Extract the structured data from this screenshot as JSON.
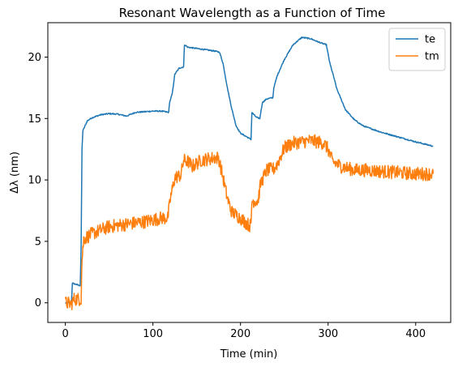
{
  "chart_data": {
    "type": "line",
    "title": "Resonant Wavelength as a Function of Time",
    "xlabel": "Time (min)",
    "ylabel": "Δλ (nm)",
    "xlim": [
      -20,
      440
    ],
    "ylim": [
      -1.6,
      22.8
    ],
    "xticks": [
      0,
      100,
      200,
      300,
      400
    ],
    "yticks": [
      0,
      5,
      10,
      15,
      20
    ],
    "grid": false,
    "legend_position": "top-right",
    "series": [
      {
        "name": "te",
        "color": "#1f77b4",
        "noise": 0.05,
        "points": [
          [
            0,
            0.0
          ],
          [
            7,
            0.0
          ],
          [
            8,
            1.6
          ],
          [
            12,
            1.5
          ],
          [
            17,
            1.4
          ],
          [
            18,
            4.5
          ],
          [
            19,
            12.5
          ],
          [
            20,
            14.0
          ],
          [
            25,
            14.8
          ],
          [
            30,
            15.05
          ],
          [
            40,
            15.3
          ],
          [
            50,
            15.4
          ],
          [
            60,
            15.35
          ],
          [
            70,
            15.2
          ],
          [
            80,
            15.5
          ],
          [
            90,
            15.55
          ],
          [
            100,
            15.6
          ],
          [
            110,
            15.6
          ],
          [
            118,
            15.5
          ],
          [
            119,
            16.3
          ],
          [
            122,
            17.0
          ],
          [
            125,
            18.6
          ],
          [
            130,
            19.1
          ],
          [
            135,
            19.2
          ],
          [
            136,
            21.0
          ],
          [
            140,
            20.8
          ],
          [
            150,
            20.7
          ],
          [
            160,
            20.6
          ],
          [
            170,
            20.5
          ],
          [
            176,
            20.4
          ],
          [
            180,
            19.5
          ],
          [
            185,
            17.5
          ],
          [
            190,
            15.8
          ],
          [
            195,
            14.4
          ],
          [
            200,
            13.8
          ],
          [
            205,
            13.6
          ],
          [
            212,
            13.3
          ],
          [
            213,
            15.5
          ],
          [
            218,
            15.1
          ],
          [
            222,
            15.0
          ],
          [
            225,
            16.3
          ],
          [
            230,
            16.6
          ],
          [
            237,
            16.7
          ],
          [
            238,
            17.5
          ],
          [
            242,
            18.5
          ],
          [
            250,
            19.8
          ],
          [
            260,
            21.0
          ],
          [
            270,
            21.6
          ],
          [
            280,
            21.5
          ],
          [
            290,
            21.2
          ],
          [
            298,
            21.0
          ],
          [
            302,
            19.5
          ],
          [
            306,
            18.5
          ],
          [
            310,
            17.4
          ],
          [
            320,
            15.7
          ],
          [
            330,
            14.9
          ],
          [
            340,
            14.4
          ],
          [
            360,
            13.9
          ],
          [
            380,
            13.5
          ],
          [
            400,
            13.1
          ],
          [
            420,
            12.75
          ]
        ]
      },
      {
        "name": "tm",
        "color": "#ff7f0e",
        "noise": 0.55,
        "points": [
          [
            0,
            0.0
          ],
          [
            7,
            -0.1
          ],
          [
            10,
            0.3
          ],
          [
            18,
            0.3
          ],
          [
            19,
            3.5
          ],
          [
            21,
            5.2
          ],
          [
            30,
            5.6
          ],
          [
            50,
            6.2
          ],
          [
            70,
            6.4
          ],
          [
            90,
            6.6
          ],
          [
            110,
            6.9
          ],
          [
            117,
            6.9
          ],
          [
            120,
            8.5
          ],
          [
            125,
            10.2
          ],
          [
            132,
            10.4
          ],
          [
            135,
            11.6
          ],
          [
            140,
            11.5
          ],
          [
            145,
            11.1
          ],
          [
            155,
            11.6
          ],
          [
            170,
            11.8
          ],
          [
            175,
            11.8
          ],
          [
            180,
            10.2
          ],
          [
            185,
            8.5
          ],
          [
            190,
            7.4
          ],
          [
            200,
            6.9
          ],
          [
            210,
            6.3
          ],
          [
            212,
            6.3
          ],
          [
            213,
            8.3
          ],
          [
            220,
            8.3
          ],
          [
            223,
            9.7
          ],
          [
            230,
            10.8
          ],
          [
            238,
            10.9
          ],
          [
            242,
            11.3
          ],
          [
            250,
            12.6
          ],
          [
            260,
            13.0
          ],
          [
            270,
            13.1
          ],
          [
            280,
            13.2
          ],
          [
            295,
            13.0
          ],
          [
            300,
            12.5
          ],
          [
            305,
            11.5
          ],
          [
            315,
            11.1
          ],
          [
            330,
            10.8
          ],
          [
            345,
            10.8
          ],
          [
            360,
            10.7
          ],
          [
            380,
            10.6
          ],
          [
            400,
            10.5
          ],
          [
            420,
            10.5
          ]
        ]
      }
    ]
  }
}
